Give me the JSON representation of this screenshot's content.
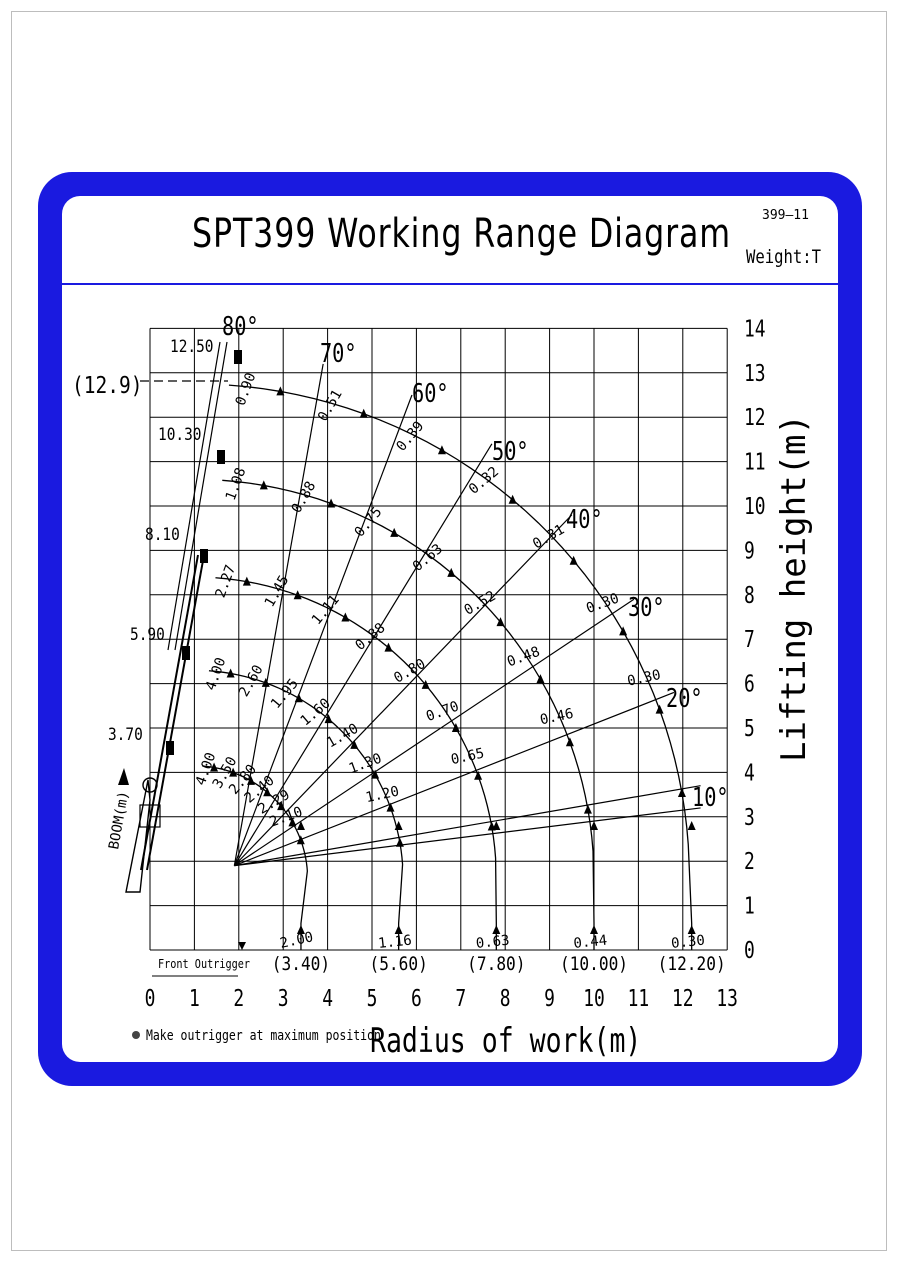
{
  "title": "SPT399 Working Range Diagram",
  "code": "399—11",
  "weight_label": "Weight:T",
  "x_axis_title": "Radius of work(m)",
  "y_axis_title": "Lifting height(m)",
  "boom_label": "BOOM(m)",
  "front_outrigger_label": "Front Outrigger",
  "note": "Make outrigger at maximum position",
  "x_ticks": [
    "0",
    "1",
    "2",
    "3",
    "4",
    "5",
    "6",
    "7",
    "8",
    "9",
    "10",
    "11",
    "12",
    "13"
  ],
  "y_ticks": [
    "0",
    "1",
    "2",
    "3",
    "4",
    "5",
    "6",
    "7",
    "8",
    "9",
    "10",
    "11",
    "12",
    "13",
    "14"
  ],
  "max_height_label": "(12.9)",
  "boom_lengths": [
    "3.70",
    "5.90",
    "8.10",
    "10.30",
    "12.50"
  ],
  "max_radius_labels": [
    "(3.40)",
    "(5.60)",
    "(7.80)",
    "(10.00)",
    "(12.20)"
  ],
  "angles": [
    "80°",
    "70°",
    "60°",
    "50°",
    "40°",
    "30°",
    "20°",
    "10°"
  ],
  "load_values": {
    "boom_3_70": [
      "4.00",
      "3.50",
      "2.80",
      "2.40",
      "2.29",
      "2.10",
      "2.00"
    ],
    "boom_5_90": [
      "4.00",
      "2.60",
      "1.95",
      "1.60",
      "1.40",
      "1.30",
      "1.20",
      "1.16"
    ],
    "boom_8_10": [
      "2.27",
      "1.45",
      "1.11",
      "0.88",
      "0.80",
      "0.70",
      "0.65",
      "0.63"
    ],
    "boom_10_30": [
      "1.08",
      "0.88",
      "0.75",
      "0.63",
      "0.52",
      "0.48",
      "0.46",
      "0.44"
    ],
    "boom_12_50": [
      "0.90",
      "0.51",
      "0.39",
      "0.32",
      "0.31",
      "0.30",
      "0.30",
      "0.30"
    ]
  }
}
